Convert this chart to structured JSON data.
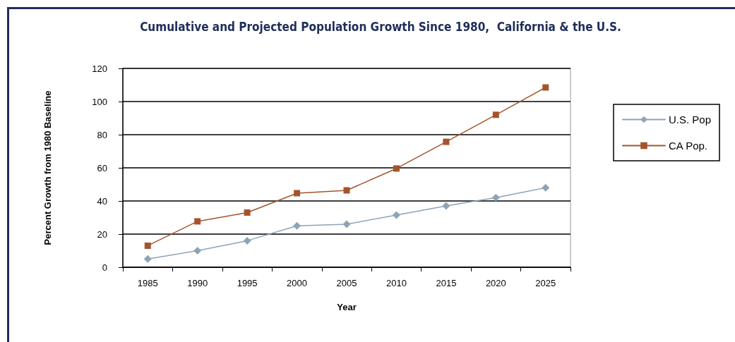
{
  "chart_data": {
    "type": "line",
    "title": "Cumulative and Projected Population Growth Since 1980,  California & the U.S.",
    "xlabel": "Year",
    "ylabel": "Percent Growth from 1980 Baseline",
    "categories": [
      "1985",
      "1990",
      "1995",
      "2000",
      "2005",
      "2010",
      "2015",
      "2020",
      "2025"
    ],
    "series": [
      {
        "name": "U.S. Pop",
        "color": "#8ea4b6",
        "marker": "diamond",
        "values": [
          5,
          10,
          16,
          25,
          26,
          31.5,
          37,
          42,
          48
        ]
      },
      {
        "name": "CA Pop.",
        "color": "#a4542c",
        "marker": "square",
        "values": [
          13,
          27.7,
          33,
          44.7,
          46.4,
          59.6,
          75.7,
          92,
          108.5
        ]
      }
    ],
    "ylim": [
      0,
      120
    ],
    "yticks": [
      0,
      20,
      40,
      60,
      80,
      100,
      120
    ],
    "grid": "y",
    "legend": "right"
  }
}
